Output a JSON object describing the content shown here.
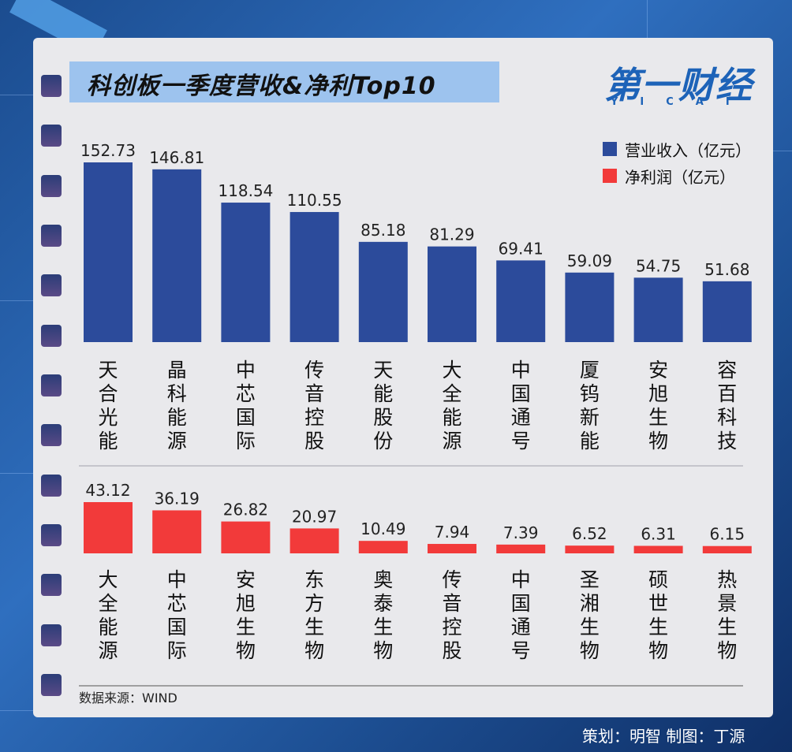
{
  "title": "科创板一季度营收&净利Top10",
  "logo": {
    "main": "第一财经",
    "sub": "YICAI"
  },
  "legend": [
    {
      "label": "营业收入（亿元）",
      "color": "#2c4b9b"
    },
    {
      "label": "净利润（亿元）",
      "color": "#f23a3a"
    }
  ],
  "source": "数据来源：WIND",
  "credit": "策划：明智 制图：丁源",
  "chart_data": [
    {
      "type": "bar",
      "series": [
        {
          "name": "营业收入（亿元）",
          "values": [
            152.73,
            146.81,
            118.54,
            110.55,
            85.18,
            81.29,
            69.41,
            59.09,
            54.75,
            51.68
          ]
        }
      ],
      "categories": [
        "天合光能",
        "晶科能源",
        "中芯国际",
        "传音控股",
        "天能股份",
        "大全能源",
        "中国通号",
        "厦钨新能",
        "安旭生物",
        "容百科技"
      ],
      "color": "#2c4b9b"
    },
    {
      "type": "bar",
      "series": [
        {
          "name": "净利润（亿元）",
          "values": [
            43.12,
            36.19,
            26.82,
            20.97,
            10.49,
            7.94,
            7.39,
            6.52,
            6.31,
            6.15
          ]
        }
      ],
      "categories": [
        "大全能源",
        "中芯国际",
        "安旭生物",
        "东方生物",
        "奥泰生物",
        "传音控股",
        "中国通号",
        "圣湘生物",
        "硕世生物",
        "热景生物"
      ],
      "color": "#f23a3a"
    }
  ]
}
